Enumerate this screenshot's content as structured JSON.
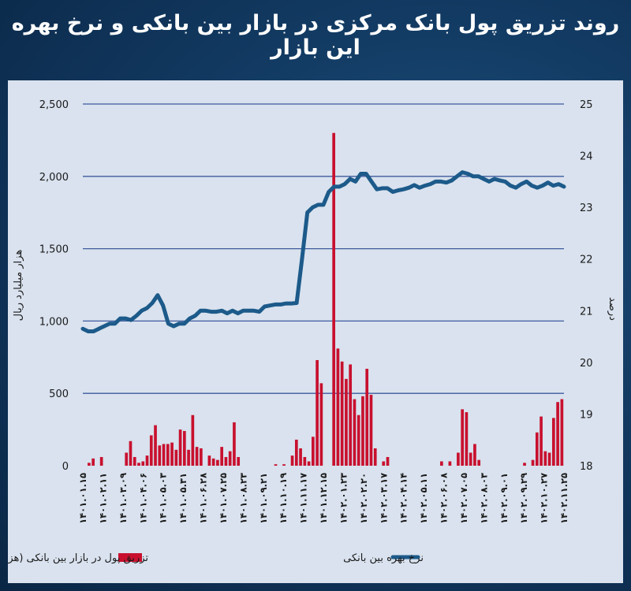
{
  "title": "روند تزریق پول بانک مرکزی در بازار بین بانکی و نرخ بهره این بازار",
  "chart_data": {
    "type": "bar+line",
    "xlabels": [
      "۱۴۰۱.۰۱.۱۵",
      "۱۴۰۱.۰۲.۱۱",
      "۱۴۰۱.۰۳.۰۹",
      "۱۴۰۱.۰۴.۰۶",
      "۱۴۰۱.۰۵.۰۳",
      "۱۴۰۱.۰۵.۳۱",
      "۱۴۰۱.۰۶.۲۸",
      "۱۴۰۱.۰۷.۲۵",
      "۱۴۰۱.۰۸.۲۳",
      "۱۴۰۱.۰۹.۲۱",
      "۱۴۰۱.۱۰.۱۹",
      "۱۴۰۱.۱۱.۱۷",
      "۱۴۰۱.۱۲.۱۵",
      "۱۴۰۲.۰۱.۲۳",
      "۱۴۰۲.۰۲.۲۰",
      "۱۴۰۲.۰۳.۱۷",
      "۱۴۰۲.۰۴.۱۴",
      "۱۴۰۲.۰۵.۱۱",
      "۱۴۰۲.۰۶.۰۸",
      "۱۴۰۲.۰۷.۰۵",
      "۱۴۰۲.۰۸.۰۳",
      "۱۴۰۲.۰۹.۰۱",
      "۱۴۰۲.۰۹.۲۹",
      "۱۴۰۲.۱۰.۲۷",
      "۱۴۰۲.۱۱.۲۵"
    ],
    "left_axis": {
      "label": "هزار میلیارد ریال",
      "ylim": [
        0,
        2500
      ],
      "ticks": [
        0,
        500,
        1000,
        1500,
        2000,
        2500
      ],
      "tick_labels": [
        "0",
        "500",
        "1,000",
        "1,500",
        "2,000",
        "2,500"
      ]
    },
    "right_axis": {
      "label": "درصد",
      "ylim": [
        18,
        25
      ],
      "ticks": [
        18,
        19,
        20,
        21,
        22,
        23,
        24,
        25
      ]
    },
    "grid": true,
    "series": [
      {
        "name": "تزریق پول در بازار بین بانکی (هزار میلیارد ریال)",
        "kind": "bar",
        "axis": "left",
        "color": "#c8102e",
        "values": [
          0,
          20,
          50,
          0,
          60,
          0,
          0,
          0,
          0,
          0,
          90,
          170,
          60,
          20,
          30,
          70,
          210,
          280,
          140,
          150,
          150,
          160,
          110,
          250,
          240,
          110,
          350,
          130,
          120,
          0,
          70,
          50,
          40,
          130,
          60,
          100,
          300,
          60,
          0,
          0,
          0,
          0,
          0,
          0,
          0,
          0,
          10,
          0,
          10,
          0,
          70,
          180,
          120,
          60,
          30,
          200,
          730,
          570,
          0,
          0,
          2300,
          810,
          720,
          600,
          700,
          460,
          350,
          480,
          670,
          490,
          120,
          0,
          30,
          60,
          0,
          0,
          0,
          0,
          0,
          0,
          0,
          0,
          0,
          0,
          0,
          0,
          30,
          0,
          30,
          0,
          90,
          390,
          370,
          90,
          150,
          40,
          0,
          0,
          0,
          0,
          0,
          0,
          0,
          0,
          0,
          0,
          20,
          0,
          40,
          230,
          340,
          100,
          90,
          330,
          440,
          460
        ]
      },
      {
        "name": "نرخ بهره بین بانکی",
        "kind": "line",
        "axis": "right",
        "color": "#1c5a8a",
        "values": [
          20.65,
          20.6,
          20.6,
          20.65,
          20.7,
          20.75,
          20.75,
          20.85,
          20.85,
          20.82,
          20.9,
          21.0,
          21.05,
          21.15,
          21.3,
          21.1,
          20.75,
          20.7,
          20.75,
          20.75,
          20.85,
          20.9,
          21.0,
          21.0,
          20.98,
          20.98,
          21.0,
          20.95,
          21.0,
          20.95,
          21.0,
          21.0,
          21.0,
          20.98,
          21.08,
          21.1,
          21.12,
          21.12,
          21.14,
          21.14,
          21.15,
          22.0,
          22.9,
          23.0,
          23.05,
          23.05,
          23.3,
          23.4,
          23.4,
          23.45,
          23.55,
          23.5,
          23.65,
          23.65,
          23.5,
          23.35,
          23.37,
          23.37,
          23.3,
          23.33,
          23.35,
          23.38,
          23.43,
          23.38,
          23.42,
          23.45,
          23.5,
          23.5,
          23.48,
          23.52,
          23.6,
          23.68,
          23.65,
          23.6,
          23.6,
          23.55,
          23.5,
          23.55,
          23.52,
          23.5,
          23.42,
          23.38,
          23.45,
          23.5,
          23.42,
          23.38,
          23.42,
          23.48,
          23.42,
          23.45,
          23.4
        ]
      }
    ]
  }
}
